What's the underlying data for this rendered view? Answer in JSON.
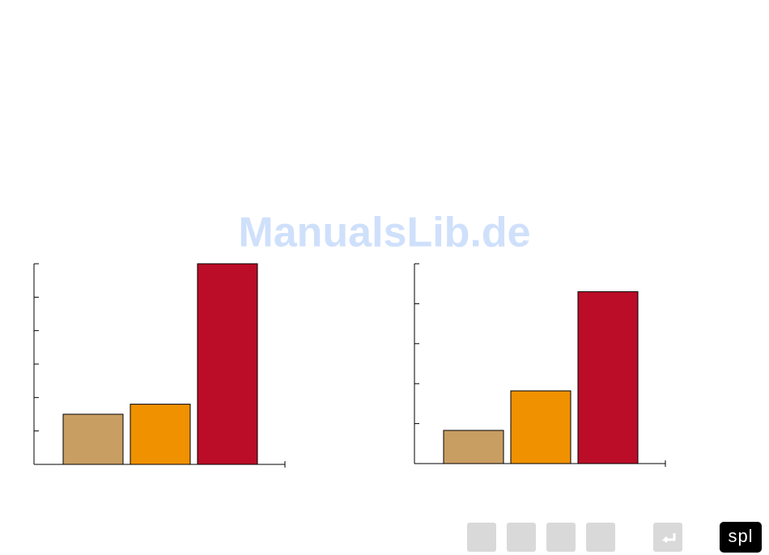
{
  "watermark": "ManualsLib.de",
  "logo": "spl",
  "chart_data": [
    {
      "type": "bar",
      "categories": [
        null,
        null,
        null
      ],
      "values": [
        1.5,
        1.8,
        6
      ],
      "colors": [
        "#c99e62",
        "#f09100",
        "#bb0d27"
      ],
      "ylim": [
        0,
        6
      ],
      "yticks": [
        0,
        1,
        2,
        3,
        4,
        5,
        6
      ]
    },
    {
      "type": "bar",
      "categories": [
        null,
        null,
        null
      ],
      "values": [
        0.83,
        1.82,
        4.3
      ],
      "colors": [
        "#c99e62",
        "#f09100",
        "#bb0d27"
      ],
      "ylim": [
        0,
        5
      ],
      "yticks": [
        0,
        1,
        2,
        3,
        4,
        5
      ]
    }
  ]
}
